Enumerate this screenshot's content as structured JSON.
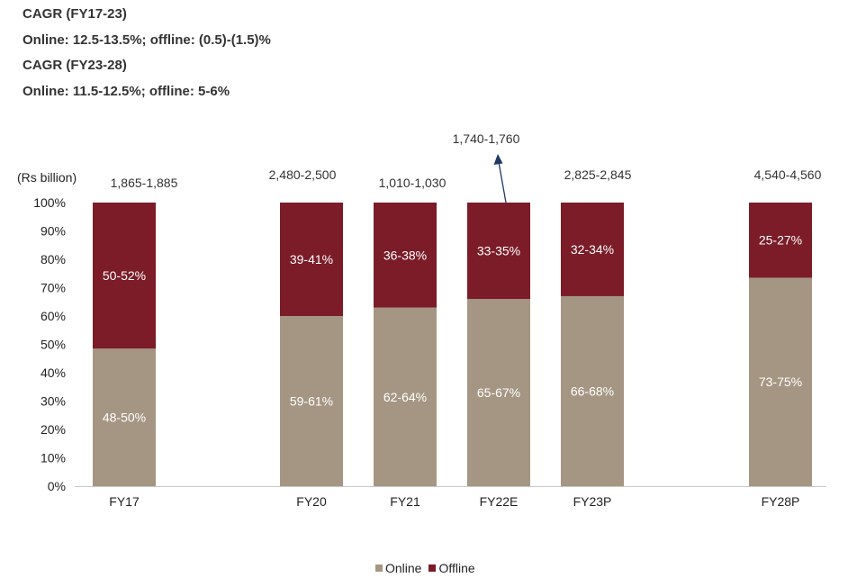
{
  "header": {
    "line1": "CAGR (FY17-23)",
    "line2": "Online: 12.5-13.5%; offline: (0.5)-(1.5)%",
    "line3": "CAGR (FY23-28)",
    "line4": "Online: 11.5-12.5%; offline: 5-6%"
  },
  "colors": {
    "online": "#a59683",
    "offline": "#7b1c28",
    "arrow": "#1f3864"
  },
  "chart_data": {
    "type": "bar",
    "stacked": true,
    "percent": true,
    "unit_label": "(Rs billion)",
    "ylim": [
      0,
      100
    ],
    "yticks": [
      "0%",
      "10%",
      "20%",
      "30%",
      "40%",
      "50%",
      "60%",
      "70%",
      "80%",
      "90%",
      "100%"
    ],
    "categories": [
      "FY17",
      "FY20",
      "FY21",
      "FY22E",
      "FY23P",
      "FY28P"
    ],
    "totals": [
      "1,865-1,885",
      "2,480-2,500",
      "1,010-1,030",
      "1,740-1,760",
      "2,825-2,845",
      "4,540-4,560"
    ],
    "series": [
      {
        "name": "Online",
        "values": [
          48.5,
          60,
          63,
          66,
          67,
          73.5
        ],
        "labels": [
          "48-50%",
          "59-61%",
          "62-64%",
          "65-67%",
          "66-68%",
          "73-75%"
        ]
      },
      {
        "name": "Offline",
        "values": [
          51.5,
          40,
          37,
          34,
          33,
          26.5
        ],
        "labels": [
          "50-52%",
          "39-41%",
          "36-38%",
          "33-35%",
          "32-34%",
          "25-27%"
        ]
      }
    ],
    "annotation": {
      "category": "FY22E",
      "type": "arrow-up"
    },
    "legend": [
      "Online",
      "Offline"
    ],
    "legend_position": "bottom-center"
  }
}
